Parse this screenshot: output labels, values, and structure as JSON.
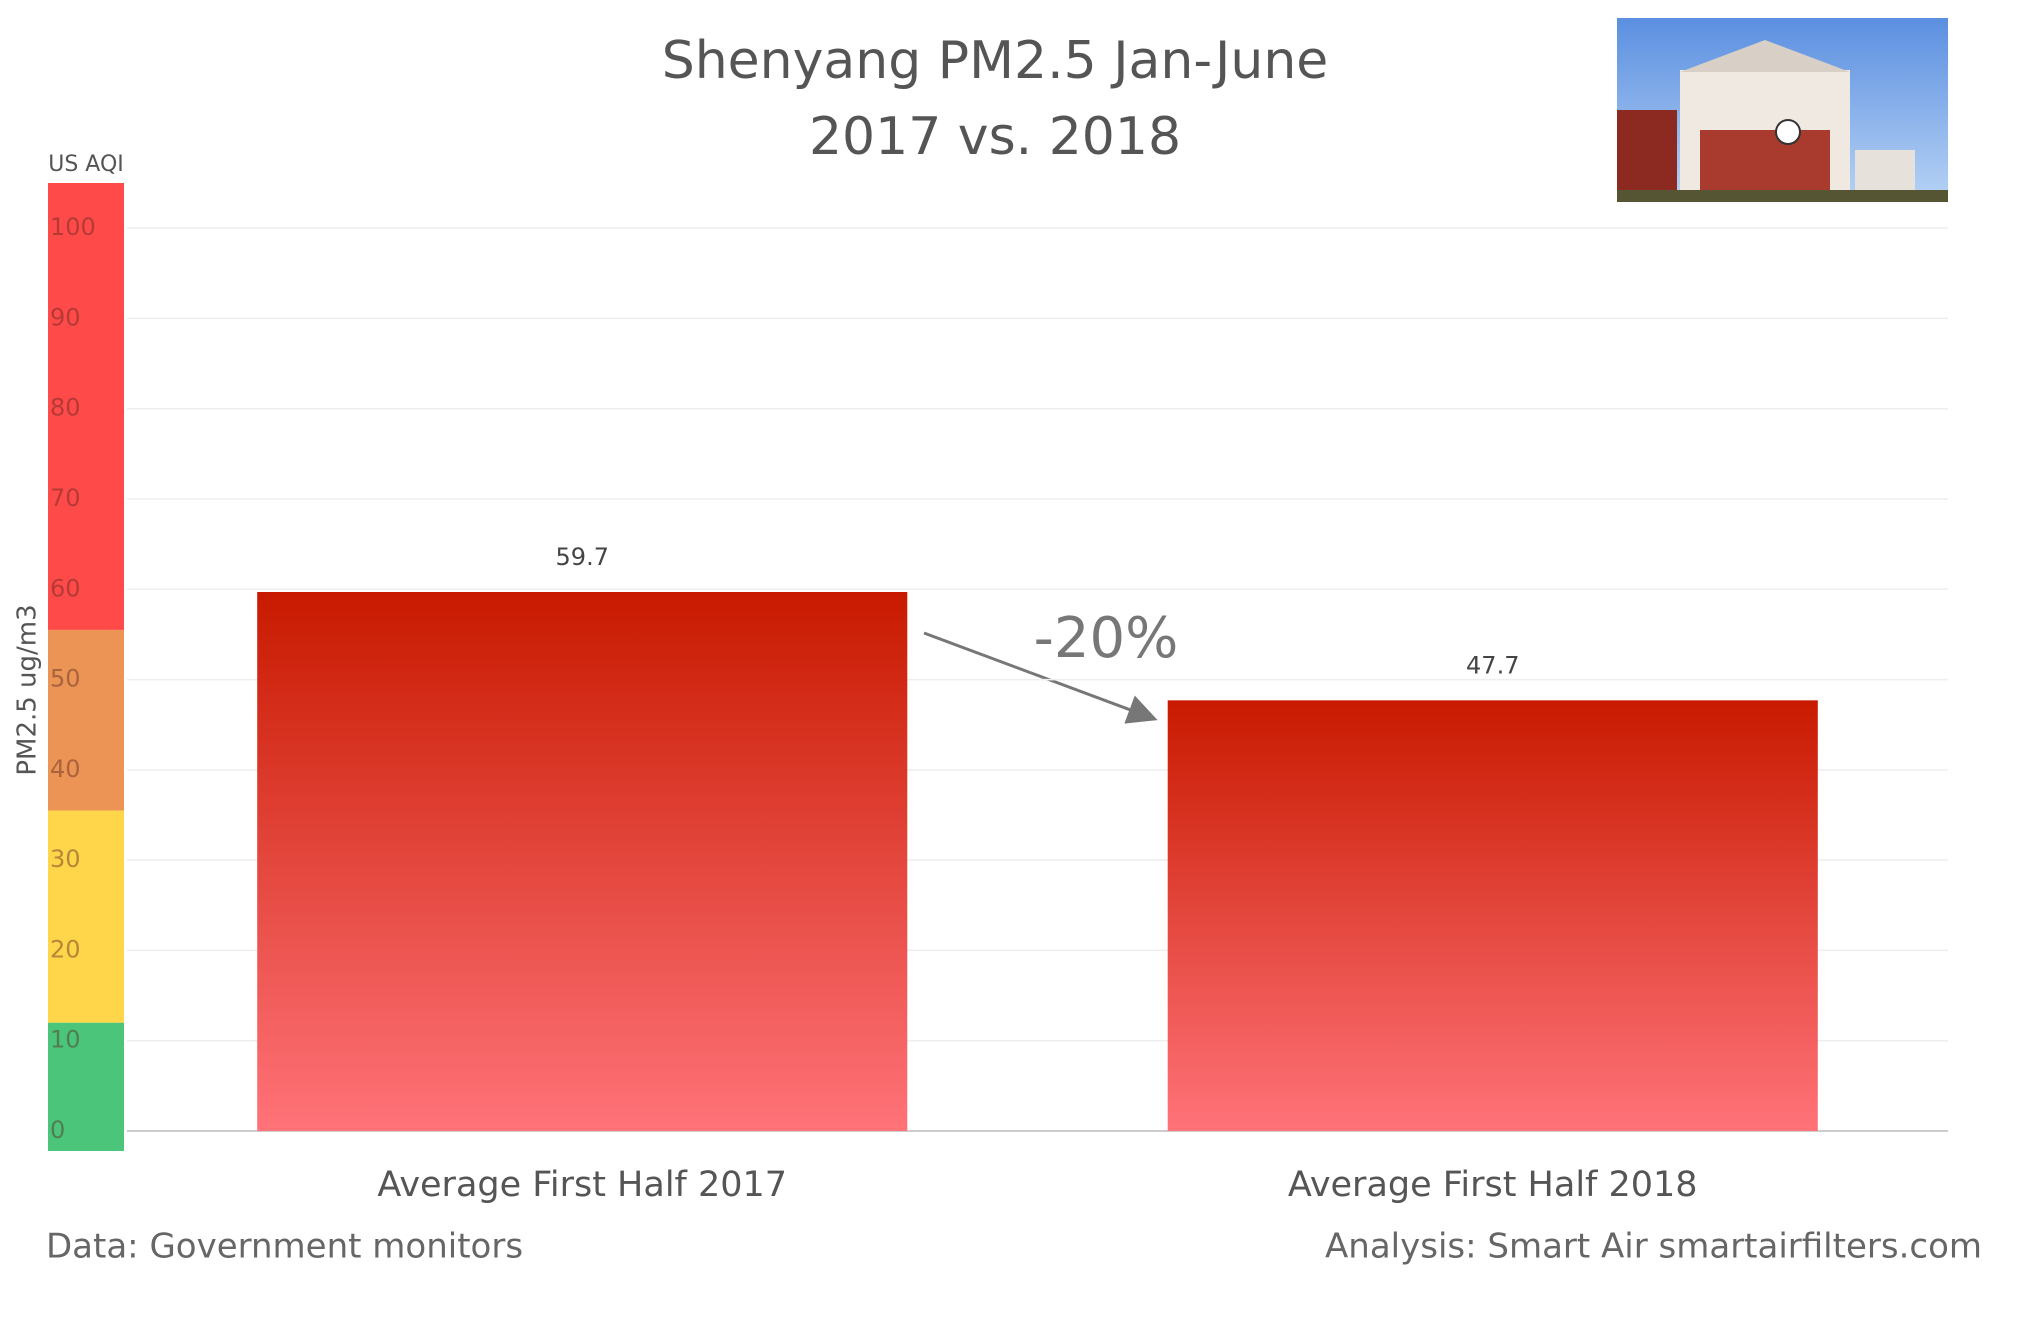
{
  "chart_data": {
    "type": "bar",
    "title": [
      "Shenyang PM2.5 Jan-June",
      "2017 vs. 2018"
    ],
    "y_label": "PM2.5 ug/m3",
    "aqi_label": "US AQI",
    "categories": [
      "Average First Half 2017",
      "Average First Half 2018"
    ],
    "values": [
      59.7,
      47.7
    ],
    "colors": [
      "#c81a00",
      "#ff7379"
    ],
    "ylim": [
      0,
      105
    ],
    "yticks": [
      0,
      10,
      20,
      30,
      40,
      50,
      60,
      70,
      80,
      90,
      100
    ],
    "grid": true,
    "aqi_bands": [
      {
        "from": 0,
        "to": 12,
        "color": "#4ac57a"
      },
      {
        "from": 12,
        "to": 35.5,
        "color": "#ffd54a"
      },
      {
        "from": 35.5,
        "to": 55.5,
        "color": "#eb9455"
      },
      {
        "from": 55.5,
        "to": 105,
        "color": "#ff4a4a"
      }
    ],
    "annotation": "-20%",
    "source_left": "Data: Government monitors",
    "source_right": "Analysis: Smart Air smartairfilters.com"
  }
}
